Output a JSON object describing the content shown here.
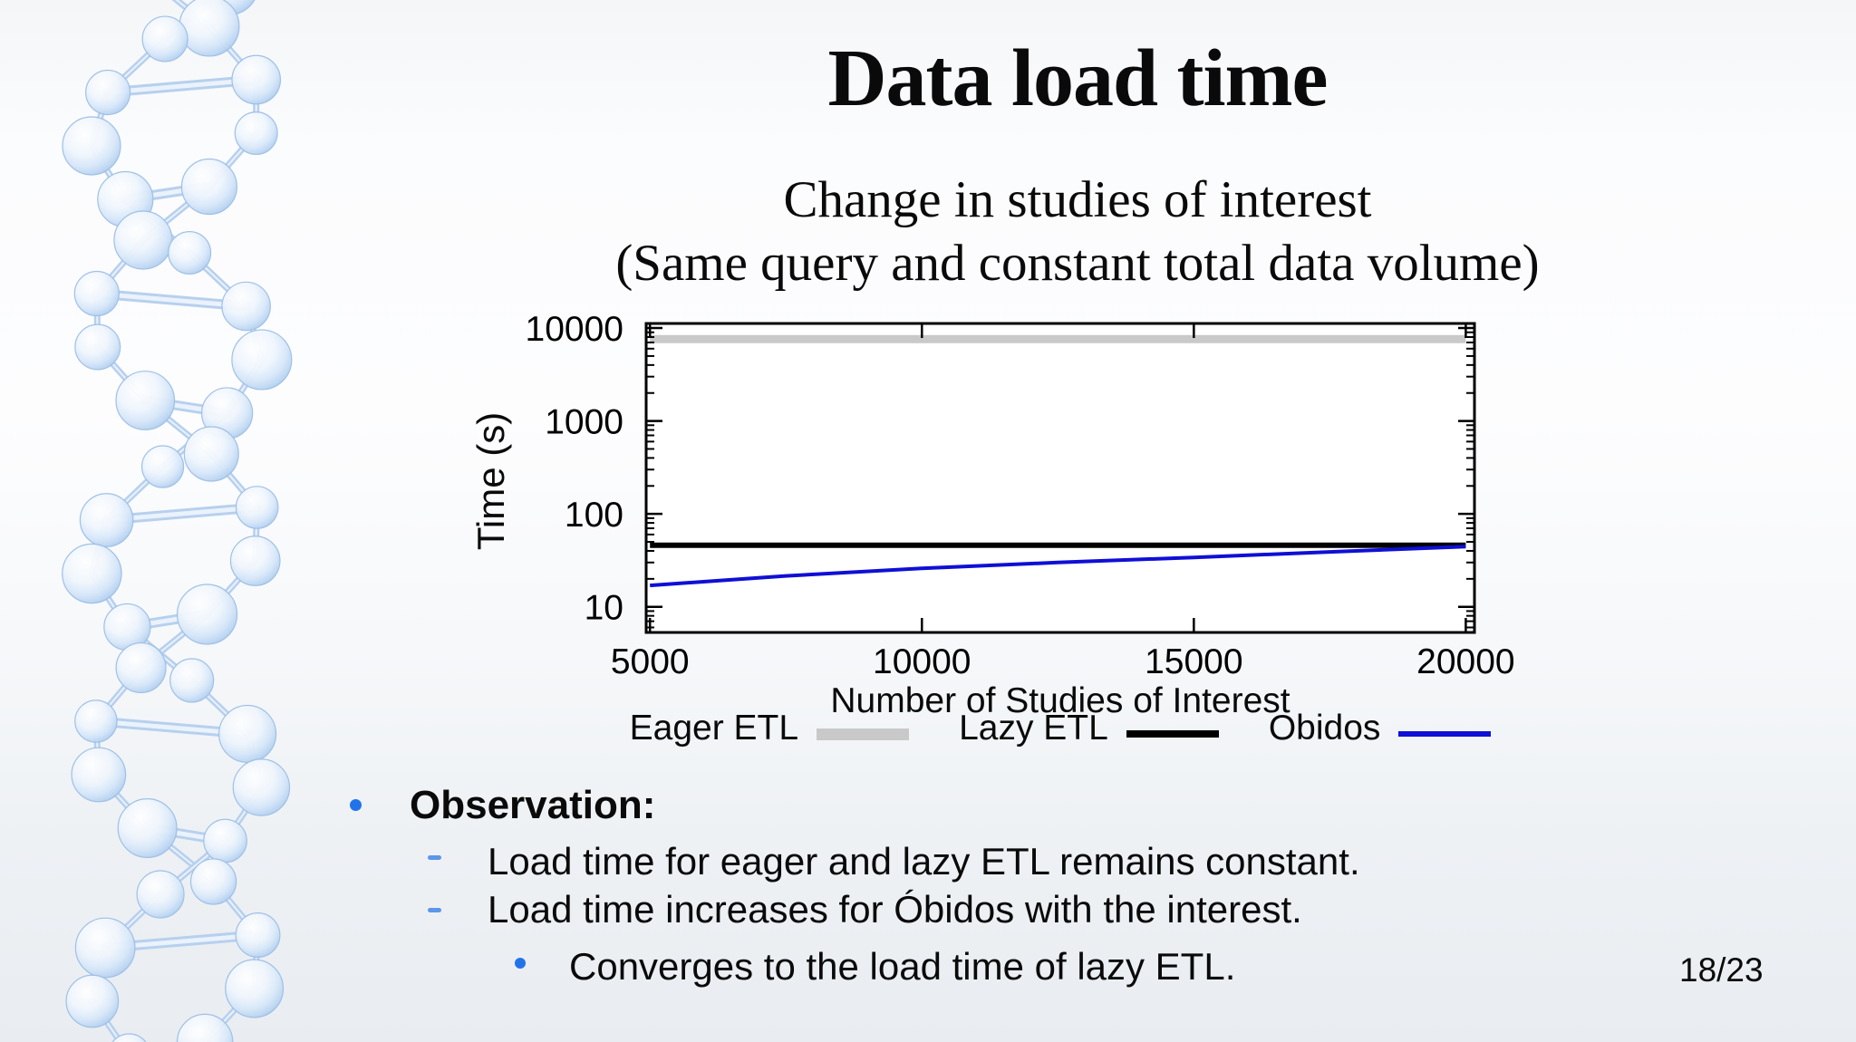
{
  "page": {
    "title": "Data load time",
    "subtitle_line1": "Change in studies of interest",
    "subtitle_line2": "(Same query and constant total data volume)",
    "page_indicator": "18/23"
  },
  "chart_data": {
    "type": "line",
    "title": "",
    "xlabel": "Number of Studies of Interest",
    "ylabel": "Time (s)",
    "x_scale": "linear",
    "y_scale": "log10",
    "xlim": [
      4930,
      20160
    ],
    "ylim": [
      5.3,
      11200
    ],
    "grid": false,
    "legend_position": "below-chart",
    "xticks": [
      {
        "label": "5000",
        "value": 5000
      },
      {
        "label": "10000",
        "value": 10000
      },
      {
        "label": "15000",
        "value": 15000
      },
      {
        "label": "20000",
        "value": 20000
      }
    ],
    "yticks": [
      {
        "label": "10",
        "value": 10
      },
      {
        "label": "100",
        "value": 100
      },
      {
        "label": "1000",
        "value": 1000
      },
      {
        "label": "10000",
        "value": 10000
      }
    ],
    "series": [
      {
        "name": "Eager ETL",
        "color": "#c9c9c9",
        "line_width": 9,
        "points": [
          [
            5000,
            7600
          ],
          [
            20000,
            7600
          ]
        ]
      },
      {
        "name": "Lazy ETL",
        "color": "#000000",
        "line_width": 6,
        "points": [
          [
            5000,
            46
          ],
          [
            20000,
            46
          ]
        ]
      },
      {
        "name": "Obidos",
        "color": "#0f0fd6",
        "line_width": 4,
        "points": [
          [
            5000,
            17
          ],
          [
            7500,
            21.5
          ],
          [
            10000,
            26
          ],
          [
            12500,
            30
          ],
          [
            15000,
            34
          ],
          [
            17500,
            39
          ],
          [
            20000,
            44.5
          ]
        ]
      }
    ]
  },
  "bullets": {
    "observation_label": "Observation:",
    "item1": "Load time for eager and lazy ETL remains constant.",
    "item2": "Load time increases for Óbidos with the interest.",
    "item3": "Converges to the load time of lazy ETL."
  },
  "decoration": {
    "icon": "dna-helix-decoration"
  },
  "colors": {
    "bullet_dot": "#2273e9",
    "bullet_dash": "#5d95e8",
    "text": "#0a0a0a",
    "background_top": "#f4f6f8",
    "background_bottom": "#e9edf1",
    "plot_background": "#ffffff",
    "plot_frame": "#000000",
    "helix_ball_edge": "#a6c4ea",
    "helix_ball_stroke": "#9dbfe6",
    "helix_rod": "#b7d0ee"
  }
}
